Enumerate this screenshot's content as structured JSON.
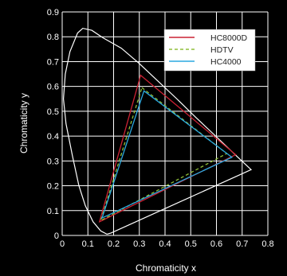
{
  "chart_data": {
    "type": "line",
    "title": "",
    "xlabel": "Chromaticity x",
    "ylabel": "Chromaticity y",
    "xlim": [
      0,
      0.8
    ],
    "ylim": [
      0,
      0.9
    ],
    "x_ticks": [
      "0",
      "0.1",
      "0.2",
      "0.3",
      "0.4",
      "0.5",
      "0.6",
      "0.7",
      "0.8"
    ],
    "y_ticks": [
      "0",
      "0.1",
      "0.2",
      "0.3",
      "0.4",
      "0.5",
      "0.6",
      "0.7",
      "0.8",
      "0.9"
    ],
    "grid": true,
    "legend_position": "top-right",
    "locus": [
      [
        0.174,
        0.005
      ],
      [
        0.15,
        0.018
      ],
      [
        0.12,
        0.055
      ],
      [
        0.09,
        0.12
      ],
      [
        0.065,
        0.2
      ],
      [
        0.04,
        0.32
      ],
      [
        0.015,
        0.45
      ],
      [
        0.005,
        0.55
      ],
      [
        0.012,
        0.65
      ],
      [
        0.03,
        0.74
      ],
      [
        0.06,
        0.815
      ],
      [
        0.08,
        0.834
      ],
      [
        0.115,
        0.826
      ],
      [
        0.16,
        0.795
      ],
      [
        0.23,
        0.754
      ],
      [
        0.3,
        0.692
      ],
      [
        0.37,
        0.624
      ],
      [
        0.45,
        0.546
      ],
      [
        0.52,
        0.475
      ],
      [
        0.6,
        0.397
      ],
      [
        0.68,
        0.318
      ],
      [
        0.735,
        0.265
      ],
      [
        0.19,
        0.01
      ],
      [
        0.174,
        0.005
      ]
    ],
    "series": [
      {
        "name": "HC8000D",
        "color": "#cc2233",
        "dash": "solid",
        "points": [
          [
            0.305,
            0.645
          ],
          [
            0.675,
            0.325
          ],
          [
            0.145,
            0.055
          ]
        ]
      },
      {
        "name": "HDTV",
        "color": "#8fbf3a",
        "dash": "dashed",
        "points": [
          [
            0.31,
            0.595
          ],
          [
            0.64,
            0.33
          ],
          [
            0.15,
            0.06
          ]
        ]
      },
      {
        "name": "HC4000",
        "color": "#2aa8e0",
        "dash": "solid",
        "points": [
          [
            0.318,
            0.582
          ],
          [
            0.66,
            0.315
          ],
          [
            0.155,
            0.07
          ]
        ]
      }
    ]
  }
}
